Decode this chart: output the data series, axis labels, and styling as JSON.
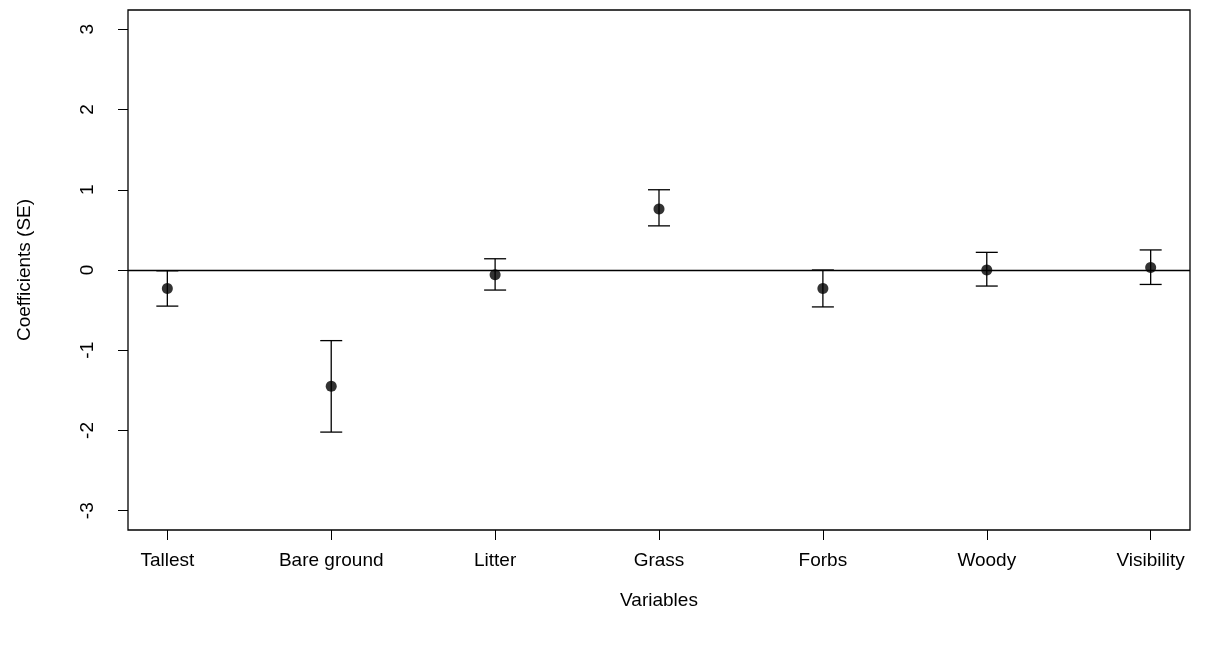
{
  "chart_data": {
    "type": "scatter",
    "xlabel": "Variables",
    "ylabel": "Coefficients (SE)",
    "categories": [
      "Tallest",
      "Bare ground",
      "Litter",
      "Grass",
      "Forbs",
      "Woody",
      "Visibility"
    ],
    "values": [
      -0.23,
      -1.45,
      -0.06,
      0.76,
      -0.23,
      0.0,
      0.03
    ],
    "errors": [
      [
        -0.45,
        -0.01
      ],
      [
        -2.02,
        -0.88
      ],
      [
        -0.25,
        0.14
      ],
      [
        0.55,
        1.0
      ],
      [
        -0.46,
        0.0
      ],
      [
        -0.2,
        0.22
      ],
      [
        -0.18,
        0.25
      ]
    ],
    "color": "#000000",
    "marker": "circle",
    "grid": false,
    "ylim": [
      -3.24,
      3.24
    ],
    "yticks": [
      -3,
      -2,
      -1,
      0,
      1,
      2,
      3
    ],
    "ref_lines": [
      {
        "axis": "y",
        "value": 0,
        "label": null,
        "color": "#000000",
        "line_style": "solid"
      }
    ]
  }
}
